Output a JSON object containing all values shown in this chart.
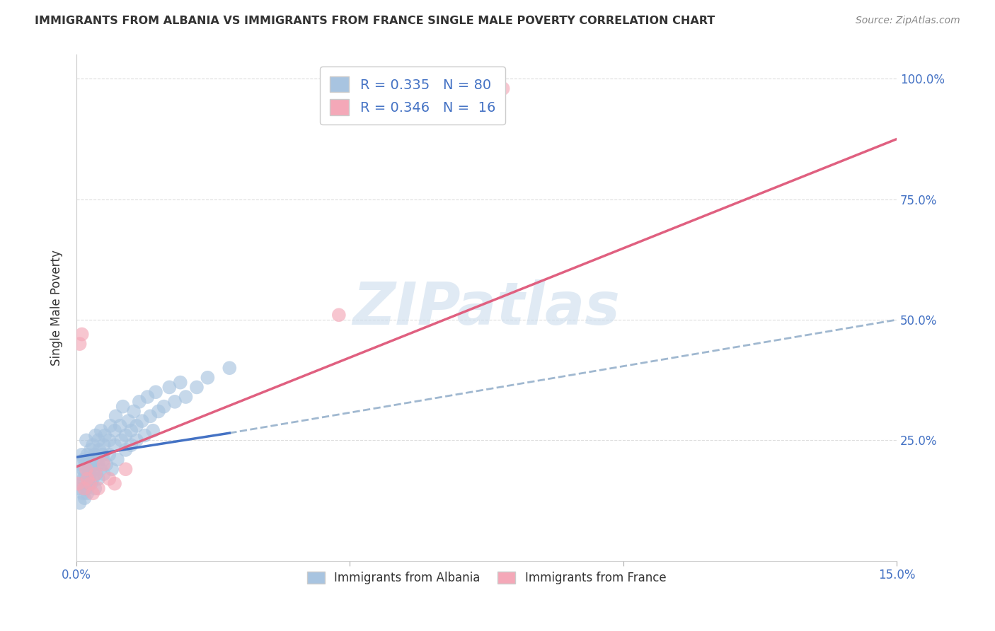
{
  "title": "IMMIGRANTS FROM ALBANIA VS IMMIGRANTS FROM FRANCE SINGLE MALE POVERTY CORRELATION CHART",
  "source": "Source: ZipAtlas.com",
  "ylabel": "Single Male Poverty",
  "ytick_labels": [
    "100.0%",
    "75.0%",
    "50.0%",
    "25.0%"
  ],
  "ytick_values": [
    1.0,
    0.75,
    0.5,
    0.25
  ],
  "legend_albania": "R = 0.335   N = 80",
  "legend_france": "R = 0.346   N =  16",
  "legend_label_albania": "Immigrants from Albania",
  "legend_label_france": "Immigrants from France",
  "albania_color": "#a8c4e0",
  "france_color": "#f4a8b8",
  "albania_line_color": "#4472c4",
  "france_line_color": "#e06080",
  "dashed_line_color": "#a0b8d0",
  "title_color": "#333333",
  "axis_label_color": "#333333",
  "tick_color": "#4472c4",
  "watermark_color": "#ccdded",
  "background_color": "#ffffff",
  "grid_color": "#dddddd",
  "albania_x": [
    0.0003,
    0.0005,
    0.0006,
    0.0008,
    0.001,
    0.001,
    0.0012,
    0.0012,
    0.0013,
    0.0014,
    0.0015,
    0.0016,
    0.0017,
    0.0018,
    0.0018,
    0.002,
    0.002,
    0.002,
    0.0022,
    0.0022,
    0.0024,
    0.0025,
    0.0026,
    0.0027,
    0.0028,
    0.003,
    0.003,
    0.0032,
    0.0033,
    0.0034,
    0.0035,
    0.0036,
    0.0038,
    0.004,
    0.004,
    0.004,
    0.0042,
    0.0044,
    0.0045,
    0.0048,
    0.005,
    0.005,
    0.005,
    0.0052,
    0.0055,
    0.006,
    0.006,
    0.0062,
    0.0065,
    0.007,
    0.007,
    0.0072,
    0.0075,
    0.008,
    0.0082,
    0.0085,
    0.009,
    0.009,
    0.0095,
    0.01,
    0.01,
    0.0105,
    0.011,
    0.011,
    0.0115,
    0.012,
    0.0125,
    0.013,
    0.0135,
    0.014,
    0.0145,
    0.015,
    0.016,
    0.017,
    0.018,
    0.019,
    0.02,
    0.022,
    0.024,
    0.028
  ],
  "albania_y": [
    0.15,
    0.18,
    0.12,
    0.2,
    0.16,
    0.22,
    0.14,
    0.19,
    0.17,
    0.21,
    0.13,
    0.18,
    0.2,
    0.15,
    0.25,
    0.17,
    0.22,
    0.14,
    0.19,
    0.16,
    0.21,
    0.18,
    0.23,
    0.16,
    0.2,
    0.17,
    0.24,
    0.19,
    0.22,
    0.15,
    0.26,
    0.18,
    0.21,
    0.2,
    0.25,
    0.17,
    0.23,
    0.19,
    0.27,
    0.22,
    0.24,
    0.18,
    0.21,
    0.26,
    0.2,
    0.25,
    0.22,
    0.28,
    0.19,
    0.27,
    0.24,
    0.3,
    0.21,
    0.28,
    0.25,
    0.32,
    0.26,
    0.23,
    0.29,
    0.27,
    0.24,
    0.31,
    0.28,
    0.25,
    0.33,
    0.29,
    0.26,
    0.34,
    0.3,
    0.27,
    0.35,
    0.31,
    0.32,
    0.36,
    0.33,
    0.37,
    0.34,
    0.36,
    0.38,
    0.4
  ],
  "france_x": [
    0.0003,
    0.0006,
    0.001,
    0.0014,
    0.0018,
    0.002,
    0.0025,
    0.003,
    0.0035,
    0.004,
    0.005,
    0.006,
    0.007,
    0.009,
    0.078,
    0.048
  ],
  "france_y": [
    0.16,
    0.45,
    0.47,
    0.15,
    0.19,
    0.17,
    0.16,
    0.14,
    0.18,
    0.15,
    0.2,
    0.17,
    0.16,
    0.19,
    0.98,
    0.51
  ],
  "albania_trend_x": [
    0.0,
    0.028
  ],
  "albania_trend_y": [
    0.215,
    0.265
  ],
  "france_trend_x": [
    0.0,
    0.15
  ],
  "france_trend_y": [
    0.195,
    0.875
  ],
  "dashed_trend_x": [
    0.028,
    0.15
  ],
  "dashed_trend_y": [
    0.265,
    0.5
  ],
  "xmin": 0.0,
  "xmax": 0.15,
  "ymin": 0.0,
  "ymax": 1.05
}
